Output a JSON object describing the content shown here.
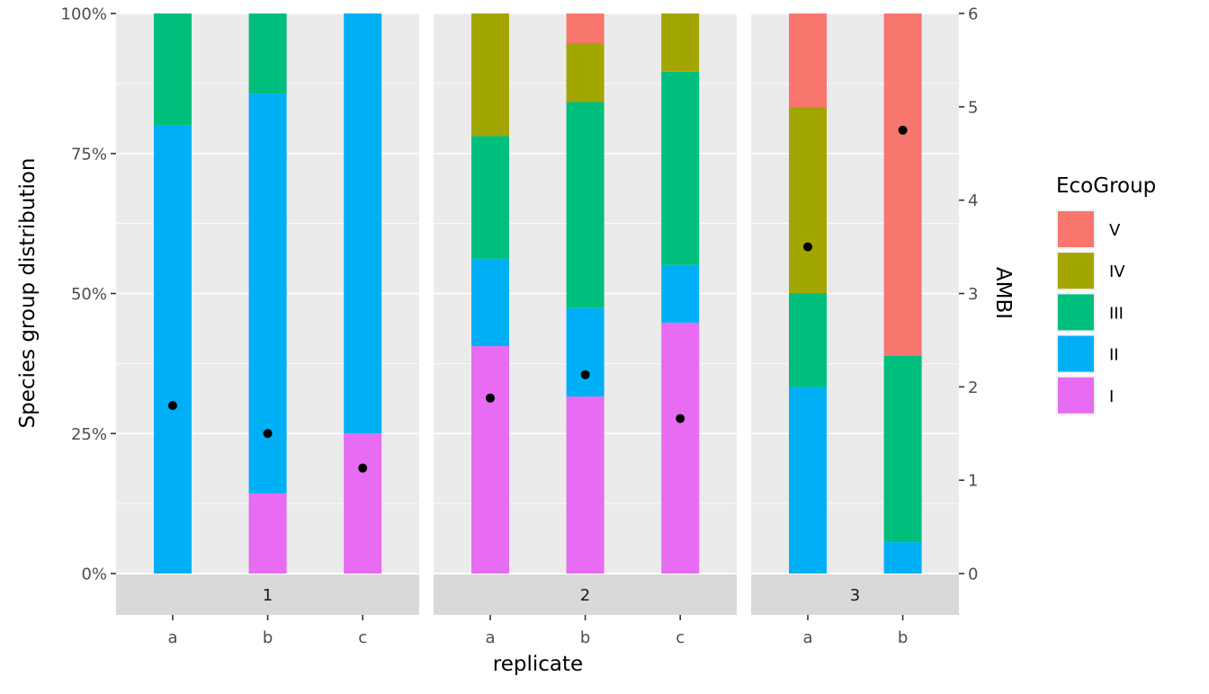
{
  "chart_data": {
    "type": "bar",
    "stacked": true,
    "ylabel": "Species group distribution",
    "ylabel_right": "AMBI",
    "xlabel": "replicate",
    "ylim": [
      0,
      1
    ],
    "yticks": [
      "0%",
      "25%",
      "50%",
      "75%",
      "100%"
    ],
    "ylim_right": [
      0,
      6
    ],
    "yticks_right": [
      "0",
      "1",
      "2",
      "3",
      "4",
      "5",
      "6"
    ],
    "grid": true,
    "legend": {
      "title": "EcoGroup",
      "position": "right",
      "entries": [
        "V",
        "IV",
        "III",
        "II",
        "I"
      ]
    },
    "colors": {
      "I": "#E76BF3",
      "II": "#00B0F6",
      "III": "#00BF7D",
      "IV": "#A3A500",
      "V": "#F8766D"
    },
    "point_color": "#000000",
    "facets": [
      {
        "label": "1",
        "replicates": [
          {
            "replicate": "a",
            "I": 0,
            "II": 0.8,
            "III": 0.2,
            "IV": 0,
            "V": 0,
            "AMBI": 1.8
          },
          {
            "replicate": "b",
            "I": 0.143,
            "II": 0.714,
            "III": 0.143,
            "IV": 0,
            "V": 0,
            "AMBI": 1.5
          },
          {
            "replicate": "c",
            "I": 0.25,
            "II": 0.75,
            "III": 0,
            "IV": 0,
            "V": 0,
            "AMBI": 1.13
          }
        ]
      },
      {
        "label": "2",
        "replicates": [
          {
            "replicate": "a",
            "I": 0.406,
            "II": 0.156,
            "III": 0.219,
            "IV": 0.219,
            "V": 0,
            "AMBI": 1.88
          },
          {
            "replicate": "b",
            "I": 0.316,
            "II": 0.158,
            "III": 0.368,
            "IV": 0.105,
            "V": 0.053,
            "AMBI": 2.13
          },
          {
            "replicate": "c",
            "I": 0.448,
            "II": 0.103,
            "III": 0.345,
            "IV": 0.104,
            "V": 0,
            "AMBI": 1.66
          }
        ]
      },
      {
        "label": "3",
        "replicates": [
          {
            "replicate": "a",
            "I": 0,
            "II": 0.333,
            "III": 0.167,
            "IV": 0.333,
            "V": 0.167,
            "AMBI": 3.5
          },
          {
            "replicate": "b",
            "I": 0,
            "II": 0.056,
            "III": 0.333,
            "IV": 0,
            "V": 0.611,
            "AMBI": 4.75
          }
        ]
      }
    ]
  }
}
